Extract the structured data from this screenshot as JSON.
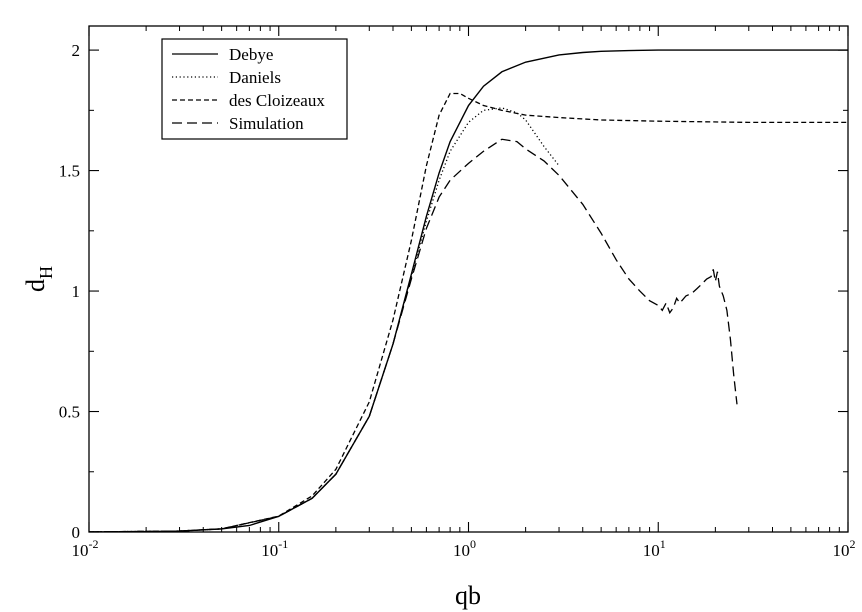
{
  "chart_data": {
    "type": "line",
    "xlabel": "qb",
    "ylabel": "d",
    "ylabel_sub": "H",
    "x_scale": "log",
    "xlim": [
      0.01,
      100
    ],
    "ylim": [
      0,
      2.1
    ],
    "x_ticks": [
      {
        "value": 0.01,
        "base": "10",
        "exp": "-2"
      },
      {
        "value": 0.1,
        "base": "10",
        "exp": "-1"
      },
      {
        "value": 1,
        "base": "10",
        "exp": "0"
      },
      {
        "value": 10,
        "base": "10",
        "exp": "1"
      },
      {
        "value": 100,
        "base": "10",
        "exp": "2"
      }
    ],
    "y_ticks": [
      {
        "value": 0,
        "label": "0"
      },
      {
        "value": 0.5,
        "label": "0.5"
      },
      {
        "value": 1,
        "label": "1"
      },
      {
        "value": 1.5,
        "label": "1.5"
      },
      {
        "value": 2,
        "label": "2"
      }
    ],
    "legend_position": "top-left",
    "grid": false,
    "series": [
      {
        "name": "Debye",
        "style": "solid",
        "x": [
          0.01,
          0.02,
          0.03,
          0.05,
          0.07,
          0.1,
          0.15,
          0.2,
          0.3,
          0.4,
          0.5,
          0.6,
          0.7,
          0.8,
          1.0,
          1.2,
          1.5,
          2,
          3,
          4,
          5,
          7,
          10,
          20,
          50,
          100
        ],
        "y": [
          0.0003,
          0.002,
          0.004,
          0.013,
          0.027,
          0.065,
          0.14,
          0.24,
          0.48,
          0.78,
          1.07,
          1.31,
          1.49,
          1.62,
          1.77,
          1.85,
          1.91,
          1.95,
          1.98,
          1.99,
          1.995,
          1.998,
          2.0,
          2.0,
          2.0,
          2.0
        ]
      },
      {
        "name": "Daniels",
        "style": "dotted",
        "x": [
          0.01,
          0.03,
          0.05,
          0.1,
          0.15,
          0.2,
          0.3,
          0.4,
          0.5,
          0.6,
          0.7,
          0.8,
          1.0,
          1.2,
          1.5,
          1.8,
          2.0,
          2.5,
          3.0
        ],
        "y": [
          0.0003,
          0.004,
          0.013,
          0.065,
          0.14,
          0.24,
          0.48,
          0.78,
          1.06,
          1.29,
          1.46,
          1.58,
          1.7,
          1.75,
          1.76,
          1.74,
          1.71,
          1.6,
          1.52
        ]
      },
      {
        "name": "des Cloizeaux",
        "style": "dashed",
        "x": [
          0.01,
          0.03,
          0.05,
          0.1,
          0.15,
          0.2,
          0.3,
          0.4,
          0.5,
          0.6,
          0.7,
          0.8,
          0.9,
          1.0,
          1.2,
          1.5,
          2.0,
          3.0,
          5.0,
          10,
          30,
          100
        ],
        "y": [
          0.0003,
          0.004,
          0.013,
          0.066,
          0.15,
          0.26,
          0.54,
          0.88,
          1.21,
          1.52,
          1.73,
          1.82,
          1.82,
          1.8,
          1.77,
          1.75,
          1.73,
          1.72,
          1.71,
          1.705,
          1.7,
          1.7
        ]
      },
      {
        "name": "Simulation",
        "style": "longdash",
        "x": [
          0.01,
          0.03,
          0.05,
          0.1,
          0.15,
          0.2,
          0.3,
          0.4,
          0.5,
          0.6,
          0.7,
          0.8,
          1.0,
          1.2,
          1.5,
          1.8,
          2.0,
          2.5,
          3.0,
          4.0,
          5.0,
          6.0,
          7.0,
          8.0,
          9.0,
          10.0,
          10.5,
          11.0,
          11.5,
          12.0,
          12.5,
          13.0,
          14.0,
          15.0,
          16.0,
          17.0,
          18.0,
          19.0,
          19.5,
          20.0,
          20.5,
          21.0,
          22.0,
          23.0,
          24.0,
          25.0,
          26.0
        ],
        "y": [
          0.0003,
          0.004,
          0.013,
          0.065,
          0.14,
          0.24,
          0.48,
          0.78,
          1.05,
          1.26,
          1.39,
          1.46,
          1.53,
          1.58,
          1.63,
          1.62,
          1.59,
          1.54,
          1.48,
          1.36,
          1.24,
          1.13,
          1.05,
          1.0,
          0.96,
          0.94,
          0.92,
          0.95,
          0.91,
          0.93,
          0.97,
          0.95,
          0.98,
          0.99,
          1.01,
          1.03,
          1.05,
          1.06,
          1.09,
          1.04,
          1.08,
          1.02,
          0.98,
          0.92,
          0.8,
          0.65,
          0.53
        ]
      }
    ]
  }
}
